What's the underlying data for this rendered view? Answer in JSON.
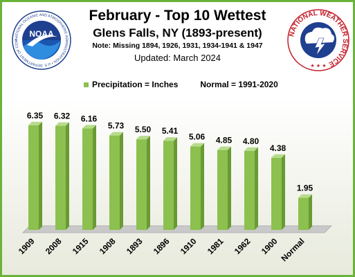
{
  "header": {
    "title": "February - Top 10 Wettest",
    "subtitle": "Glens Falls, NY (1893-present)",
    "note": "Note: Missing 1894, 1926, 1931, 1934-1941 & 1947",
    "updated": "Updated:  March 2024"
  },
  "logos": {
    "noaa_text": "NOAA",
    "noaa_ring_text": "NATIONAL OCEANIC AND ATMOSPHERIC ADMINISTRATION • U.S. DEPARTMENT OF COMMERCE",
    "nws_ring_text": "NATIONAL WEATHER SERVICE"
  },
  "legend": {
    "series_label": "Precipitation = Inches",
    "normal_label": "Normal = 1991-2020"
  },
  "colors": {
    "bar": "#8cc04f",
    "bar_dark": "#6a9a33",
    "bar_top": "#b7db8c",
    "border": "#6ab23a"
  },
  "chart_data": {
    "type": "bar",
    "categories": [
      "1909",
      "2008",
      "1915",
      "1908",
      "1893",
      "1896",
      "1910",
      "1981",
      "1962",
      "1900",
      "Normal"
    ],
    "values": [
      6.35,
      6.32,
      6.16,
      5.73,
      5.5,
      5.41,
      5.06,
      4.85,
      4.8,
      4.38,
      1.95
    ],
    "data_labels": [
      "6.35",
      "6.32",
      "6.16",
      "5.73",
      "5.50",
      "5.41",
      "5.06",
      "4.85",
      "4.80",
      "4.38",
      "1.95"
    ],
    "ylim": [
      0,
      7
    ],
    "grid": false,
    "legend_position": "top"
  }
}
